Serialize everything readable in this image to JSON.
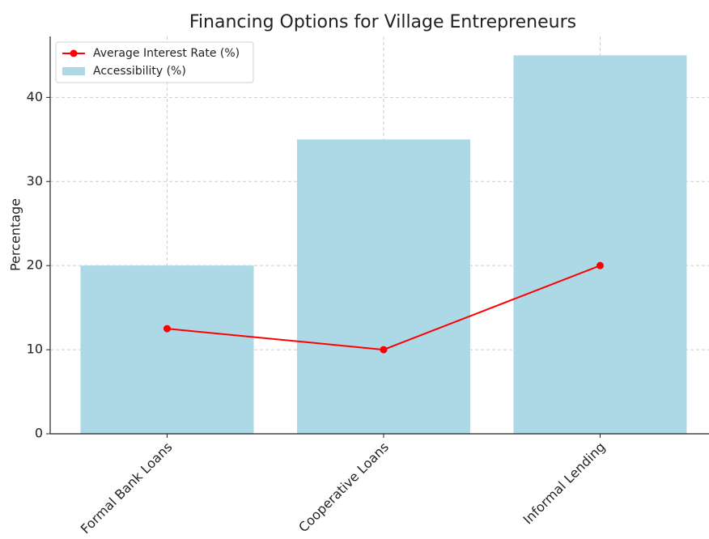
{
  "chart_data": {
    "type": "bar",
    "title": "Financing Options for Village Entrepreneurs",
    "ylabel": "Percentage",
    "categories": [
      "Formal Bank Loans",
      "Cooperative Loans",
      "Informal Lending"
    ],
    "series": [
      {
        "name": "Average Interest Rate (%)",
        "type": "line",
        "color": "#ff0000",
        "values": [
          12.5,
          10,
          20
        ]
      },
      {
        "name": "Accessibility (%)",
        "type": "bar",
        "color": "#add8e6",
        "values": [
          20,
          35,
          45
        ]
      }
    ],
    "ylim": [
      0,
      47.25
    ],
    "yticks": [
      0,
      10,
      20,
      30,
      40
    ],
    "grid": true,
    "legend": "upper left"
  }
}
